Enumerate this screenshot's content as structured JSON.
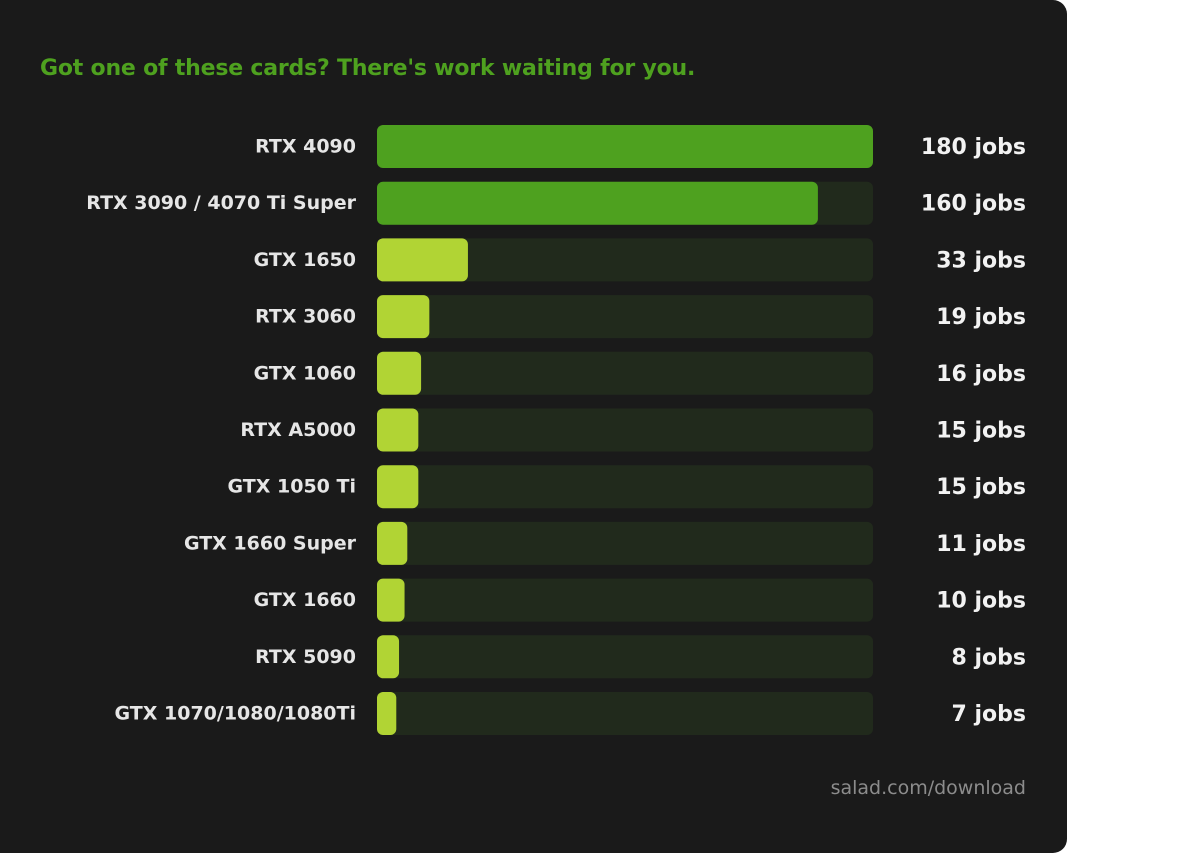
{
  "title": "Got one of these cards? There's work waiting for you.",
  "footer": "salad.com/download",
  "colors": {
    "background": "#1a1a1a",
    "title": "#4ea11f",
    "track": "#212a1c",
    "bar_top": "#4ea11f",
    "bar_other": "#b1d434",
    "footer": "#8c8c8c"
  },
  "chart_data": {
    "type": "bar",
    "orientation": "horizontal",
    "title": "Got one of these cards? There's work waiting for you.",
    "xlim": [
      0,
      180
    ],
    "grid": false,
    "value_suffix": " jobs",
    "categories": [
      "RTX 4090",
      "RTX 3090 / 4070 Ti Super",
      "GTX 1650",
      "RTX 3060",
      "GTX 1060",
      "RTX A5000",
      "GTX 1050 Ti",
      "GTX 1660 Super",
      "GTX 1660",
      "RTX 5090",
      "GTX 1070/1080/1080Ti"
    ],
    "values": [
      180,
      160,
      33,
      19,
      16,
      15,
      15,
      11,
      10,
      8,
      7
    ],
    "value_labels": [
      "180 jobs",
      "160 jobs",
      "33 jobs",
      "19 jobs",
      "16 jobs",
      "15 jobs",
      "15 jobs",
      "11 jobs",
      "10 jobs",
      "8 jobs",
      "7 jobs"
    ]
  }
}
